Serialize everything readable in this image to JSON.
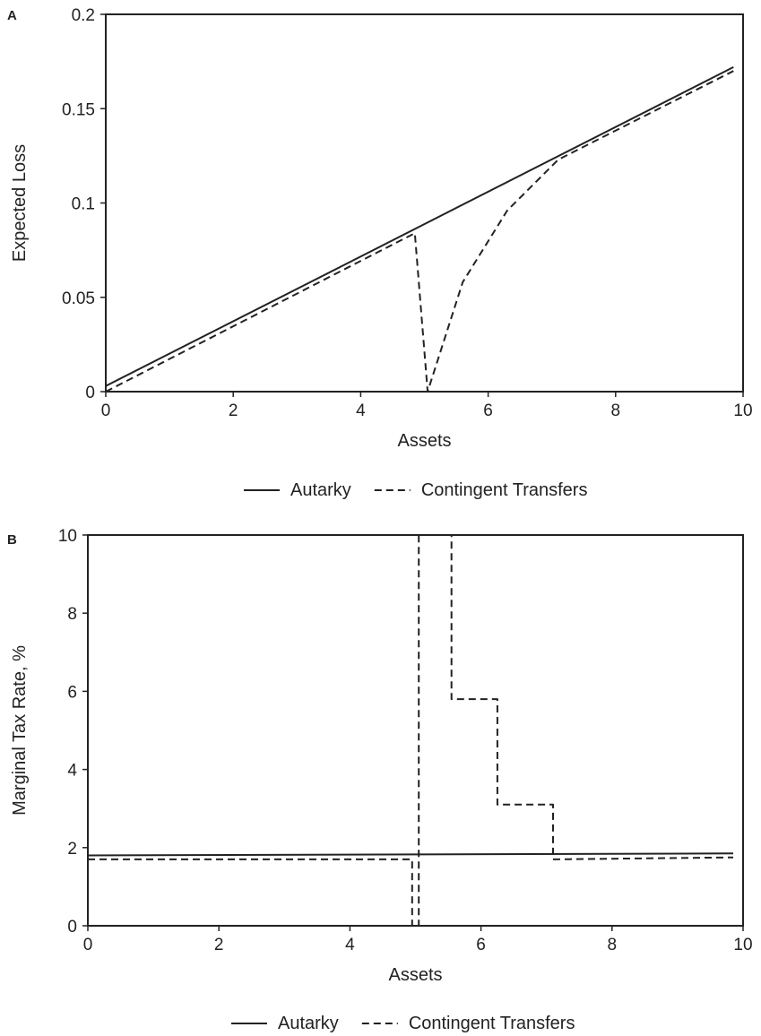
{
  "chart_data": [
    {
      "panel_label": "A",
      "type": "line",
      "xlabel": "Assets",
      "ylabel": "Expected Loss",
      "xlim": [
        0,
        10
      ],
      "ylim": [
        0,
        0.2
      ],
      "xticks": [
        "0",
        "2",
        "4",
        "6",
        "8",
        "10"
      ],
      "yticks": [
        "0",
        "0.05",
        "0.1",
        "0.15",
        "0.2"
      ],
      "legend_position": "bottom",
      "series": [
        {
          "name": "Autarky",
          "style": "solid",
          "x": [
            0,
            9.85
          ],
          "y": [
            0.003,
            0.172
          ]
        },
        {
          "name": "Contingent Transfers",
          "style": "dashed",
          "x": [
            0,
            4.85,
            5.05,
            5.6,
            6.3,
            7.1,
            9.85
          ],
          "y": [
            0.0,
            0.084,
            0.0,
            0.058,
            0.096,
            0.123,
            0.17
          ]
        }
      ]
    },
    {
      "panel_label": "B",
      "type": "line",
      "xlabel": "Assets",
      "ylabel": "Marginal Tax Rate, %",
      "xlim": [
        0,
        10
      ],
      "ylim": [
        0,
        10
      ],
      "xticks": [
        "0",
        "2",
        "4",
        "6",
        "8",
        "10"
      ],
      "yticks": [
        "0",
        "2",
        "4",
        "6",
        "8",
        "10"
      ],
      "legend_position": "bottom",
      "series": [
        {
          "name": "Autarky",
          "style": "solid",
          "x": [
            0,
            9.85
          ],
          "y": [
            1.8,
            1.85
          ]
        },
        {
          "name": "Contingent Transfers",
          "style": "dashed",
          "x": [
            0,
            4.95,
            4.95,
            5.05,
            5.05,
            5.55,
            5.55,
            6.25,
            6.25,
            7.1,
            7.1,
            9.85
          ],
          "y": [
            1.7,
            1.7,
            0,
            0,
            10,
            10,
            5.8,
            5.8,
            3.1,
            3.1,
            1.7,
            1.75
          ]
        }
      ]
    }
  ]
}
